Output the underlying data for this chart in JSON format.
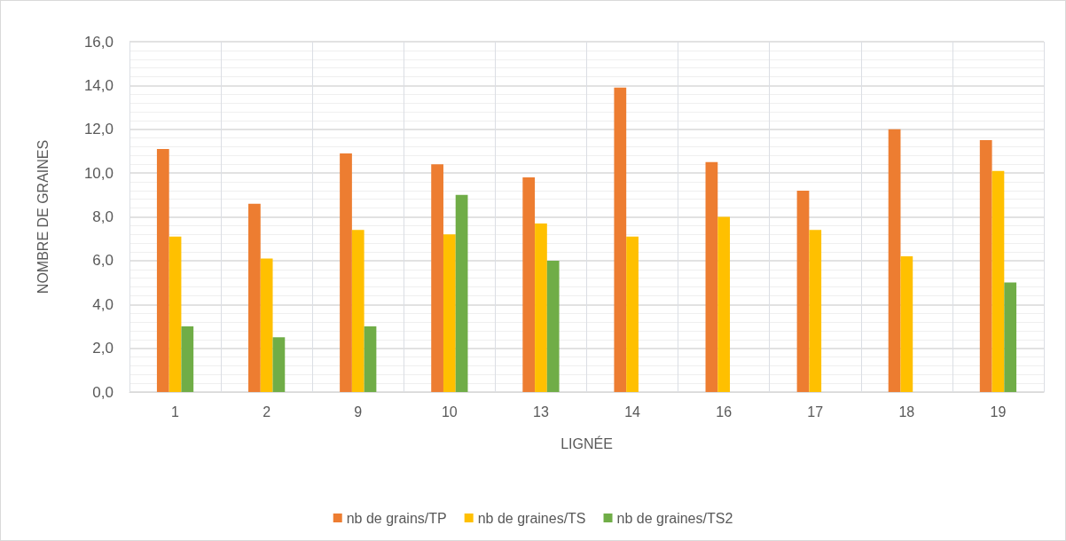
{
  "chart_data": {
    "type": "bar",
    "xlabel": "LIGNÉE",
    "ylabel": "NOMBRE DE GRAINES",
    "categories": [
      "1",
      "2",
      "9",
      "10",
      "13",
      "14",
      "16",
      "17",
      "18",
      "19"
    ],
    "series": [
      {
        "name": "nb de grains/TP",
        "color": "#ed7d31",
        "values": [
          11.1,
          8.6,
          10.9,
          10.4,
          9.8,
          13.9,
          10.5,
          9.2,
          12.0,
          11.5
        ]
      },
      {
        "name": "nb de graines/TS",
        "color": "#ffc000",
        "values": [
          7.1,
          6.1,
          7.4,
          7.2,
          7.7,
          7.1,
          8.0,
          7.4,
          6.2,
          10.1
        ]
      },
      {
        "name": "nb de graines/TS2",
        "color": "#70ad47",
        "values": [
          3.0,
          2.5,
          3.0,
          9.0,
          6.0,
          null,
          null,
          null,
          null,
          5.0
        ]
      }
    ],
    "ylim": [
      0,
      16
    ],
    "yticks": [
      {
        "value": 0,
        "label": "0,0"
      },
      {
        "value": 2,
        "label": "2,0"
      },
      {
        "value": 4,
        "label": "4,0"
      },
      {
        "value": 6,
        "label": "6,0"
      },
      {
        "value": 8,
        "label": "8,0"
      },
      {
        "value": 10,
        "label": "10,0"
      },
      {
        "value": 12,
        "label": "12,0"
      },
      {
        "value": 14,
        "label": "14,0"
      },
      {
        "value": 16,
        "label": "16,0"
      }
    ],
    "grid": true,
    "legend": "bottom"
  }
}
